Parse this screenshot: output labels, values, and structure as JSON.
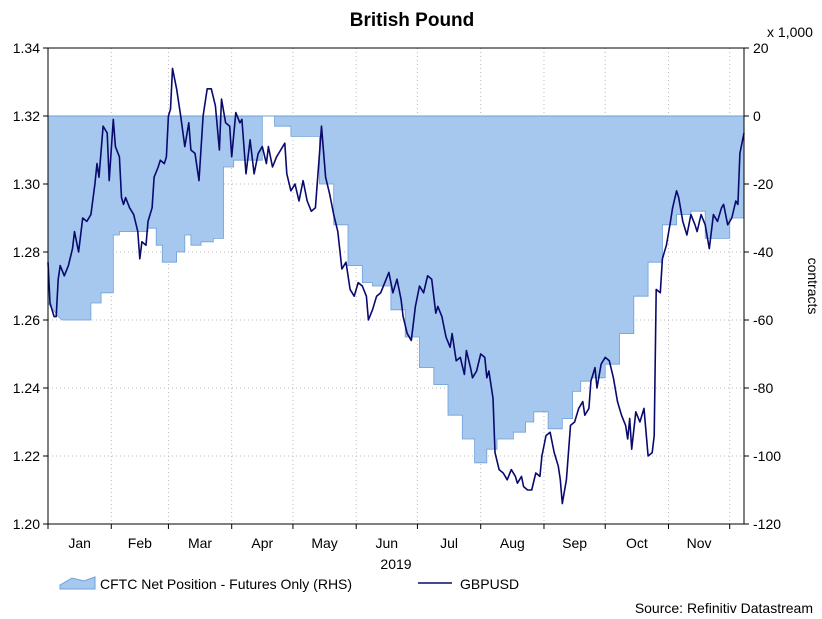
{
  "chart_data": {
    "type": "line",
    "title": "British Pound",
    "subtitle": "",
    "xlabel": "2019",
    "ylabel_left": "",
    "ylabel_right": "contracts",
    "right_multiplier": "x 1,000",
    "source": "Source: Refinitiv Datastream",
    "grid": true,
    "legend_position": "bottom-left",
    "months": [
      "Jan",
      "Feb",
      "Mar",
      "Apr",
      "May",
      "Jun",
      "Jul",
      "Aug",
      "Sep",
      "Oct",
      "Nov"
    ],
    "left_axis": {
      "min": 1.2,
      "max": 1.34,
      "ticks": [
        "1.20",
        "1.22",
        "1.24",
        "1.26",
        "1.28",
        "1.30",
        "1.32",
        "1.34"
      ]
    },
    "right_axis": {
      "min": -120,
      "max": 20,
      "ticks": [
        "-120",
        "-100",
        "-80",
        "-60",
        "-40",
        "-20",
        "0",
        "20"
      ]
    },
    "x_domain_days": [
      0,
      341
    ],
    "series": [
      {
        "name": "CFTC Net Position - Futures Only (RHS)",
        "kind": "area",
        "axis": "right",
        "color": "#a6c8ee",
        "stroke": "#6f9fd6",
        "points": [
          [
            0,
            -55
          ],
          [
            5,
            -59
          ],
          [
            7,
            -60
          ],
          [
            21,
            -60
          ],
          [
            21,
            -55
          ],
          [
            26,
            -55
          ],
          [
            26,
            -52
          ],
          [
            32,
            -52
          ],
          [
            32,
            -35
          ],
          [
            35,
            -35
          ],
          [
            35,
            -34
          ],
          [
            49,
            -34
          ],
          [
            49,
            -33
          ],
          [
            53,
            -33
          ],
          [
            53,
            -38
          ],
          [
            56,
            -38
          ],
          [
            56,
            -43
          ],
          [
            63,
            -43
          ],
          [
            63,
            -40
          ],
          [
            67,
            -40
          ],
          [
            67,
            -35
          ],
          [
            70,
            -35
          ],
          [
            70,
            -38
          ],
          [
            75,
            -38
          ],
          [
            75,
            -37
          ],
          [
            81,
            -37
          ],
          [
            81,
            -36
          ],
          [
            86,
            -36
          ],
          [
            86,
            -15
          ],
          [
            91,
            -15
          ],
          [
            91,
            -13
          ],
          [
            105,
            -13
          ],
          [
            105,
            0
          ],
          [
            111,
            0
          ],
          [
            111,
            -3
          ],
          [
            119,
            -3
          ],
          [
            119,
            -6
          ],
          [
            133,
            -6
          ],
          [
            133,
            -20
          ],
          [
            140,
            -20
          ],
          [
            140,
            -32
          ],
          [
            147,
            -32
          ],
          [
            147,
            -44
          ],
          [
            154,
            -44
          ],
          [
            154,
            -49
          ],
          [
            159,
            -49
          ],
          [
            159,
            -50
          ],
          [
            168,
            -50
          ],
          [
            168,
            -57
          ],
          [
            175,
            -57
          ],
          [
            175,
            -65
          ],
          [
            182,
            -65
          ],
          [
            182,
            -74
          ],
          [
            189,
            -74
          ],
          [
            189,
            -79
          ],
          [
            196,
            -79
          ],
          [
            196,
            -88
          ],
          [
            203,
            -88
          ],
          [
            203,
            -95
          ],
          [
            209,
            -95
          ],
          [
            209,
            -102
          ],
          [
            215,
            -102
          ],
          [
            215,
            -98
          ],
          [
            220,
            -98
          ],
          [
            220,
            -95
          ],
          [
            228,
            -95
          ],
          [
            228,
            -93
          ],
          [
            234,
            -93
          ],
          [
            234,
            -90
          ],
          [
            238,
            -90
          ],
          [
            238,
            -87
          ],
          [
            245,
            -87
          ],
          [
            245,
            -92
          ],
          [
            252,
            -92
          ],
          [
            252,
            -89
          ],
          [
            257,
            -89
          ],
          [
            257,
            -81
          ],
          [
            261,
            -81
          ],
          [
            261,
            -78
          ],
          [
            266,
            -78
          ],
          [
            266,
            -77
          ],
          [
            273,
            -77
          ],
          [
            273,
            -73
          ],
          [
            280,
            -73
          ],
          [
            280,
            -64
          ],
          [
            287,
            -64
          ],
          [
            287,
            -53
          ],
          [
            294,
            -53
          ],
          [
            294,
            -43
          ],
          [
            301,
            -43
          ],
          [
            301,
            -32
          ],
          [
            308,
            -32
          ],
          [
            308,
            -29
          ],
          [
            315,
            -29
          ],
          [
            315,
            -28
          ],
          [
            322,
            -28
          ],
          [
            322,
            -36
          ],
          [
            329,
            -36
          ],
          [
            329,
            -36
          ],
          [
            334,
            -36
          ],
          [
            334,
            -30
          ],
          [
            341,
            -30
          ]
        ]
      },
      {
        "name": "GBPUSD",
        "kind": "line",
        "axis": "left",
        "color": "#0a0a6e",
        "points": [
          [
            0,
            1.277
          ],
          [
            1,
            1.265
          ],
          [
            3,
            1.261
          ],
          [
            4,
            1.261
          ],
          [
            5,
            1.272
          ],
          [
            6,
            1.276
          ],
          [
            8,
            1.273
          ],
          [
            10,
            1.276
          ],
          [
            12,
            1.281
          ],
          [
            13,
            1.286
          ],
          [
            15,
            1.28
          ],
          [
            17,
            1.29
          ],
          [
            19,
            1.289
          ],
          [
            21,
            1.291
          ],
          [
            23,
            1.3
          ],
          [
            24,
            1.306
          ],
          [
            25,
            1.302
          ],
          [
            27,
            1.317
          ],
          [
            29,
            1.315
          ],
          [
            30,
            1.301
          ],
          [
            32,
            1.319
          ],
          [
            33,
            1.311
          ],
          [
            35,
            1.308
          ],
          [
            36,
            1.296
          ],
          [
            37,
            1.294
          ],
          [
            38,
            1.296
          ],
          [
            40,
            1.293
          ],
          [
            42,
            1.291
          ],
          [
            44,
            1.286
          ],
          [
            45,
            1.278
          ],
          [
            46,
            1.283
          ],
          [
            48,
            1.282
          ],
          [
            49,
            1.289
          ],
          [
            51,
            1.293
          ],
          [
            52,
            1.302
          ],
          [
            54,
            1.305
          ],
          [
            55,
            1.307
          ],
          [
            57,
            1.306
          ],
          [
            58,
            1.308
          ],
          [
            59,
            1.32
          ],
          [
            60,
            1.322
          ],
          [
            61,
            1.334
          ],
          [
            63,
            1.328
          ],
          [
            65,
            1.32
          ],
          [
            67,
            1.311
          ],
          [
            69,
            1.318
          ],
          [
            70,
            1.31
          ],
          [
            72,
            1.309
          ],
          [
            74,
            1.301
          ],
          [
            76,
            1.32
          ],
          [
            78,
            1.328
          ],
          [
            80,
            1.328
          ],
          [
            82,
            1.323
          ],
          [
            84,
            1.31
          ],
          [
            85,
            1.325
          ],
          [
            87,
            1.318
          ],
          [
            89,
            1.317
          ],
          [
            90,
            1.308
          ],
          [
            92,
            1.321
          ],
          [
            94,
            1.318
          ],
          [
            95,
            1.319
          ],
          [
            97,
            1.303
          ],
          [
            99,
            1.313
          ],
          [
            101,
            1.303
          ],
          [
            103,
            1.309
          ],
          [
            105,
            1.311
          ],
          [
            107,
            1.306
          ],
          [
            108,
            1.311
          ],
          [
            110,
            1.305
          ],
          [
            112,
            1.308
          ],
          [
            114,
            1.31
          ],
          [
            116,
            1.312
          ],
          [
            117,
            1.303
          ],
          [
            119,
            1.298
          ],
          [
            121,
            1.3
          ],
          [
            123,
            1.295
          ],
          [
            125,
            1.301
          ],
          [
            127,
            1.295
          ],
          [
            129,
            1.292
          ],
          [
            131,
            1.293
          ],
          [
            133,
            1.309
          ],
          [
            134,
            1.317
          ],
          [
            136,
            1.302
          ],
          [
            138,
            1.297
          ],
          [
            140,
            1.291
          ],
          [
            142,
            1.286
          ],
          [
            144,
            1.275
          ],
          [
            146,
            1.277
          ],
          [
            148,
            1.269
          ],
          [
            150,
            1.267
          ],
          [
            152,
            1.271
          ],
          [
            154,
            1.27
          ],
          [
            156,
            1.267
          ],
          [
            157,
            1.26
          ],
          [
            159,
            1.263
          ],
          [
            161,
            1.267
          ],
          [
            163,
            1.268
          ],
          [
            165,
            1.271
          ],
          [
            167,
            1.274
          ],
          [
            169,
            1.268
          ],
          [
            171,
            1.272
          ],
          [
            173,
            1.266
          ],
          [
            174,
            1.261
          ],
          [
            176,
            1.256
          ],
          [
            178,
            1.254
          ],
          [
            180,
            1.264
          ],
          [
            182,
            1.27
          ],
          [
            184,
            1.268
          ],
          [
            186,
            1.273
          ],
          [
            188,
            1.272
          ],
          [
            190,
            1.262
          ],
          [
            191,
            1.264
          ],
          [
            193,
            1.261
          ],
          [
            195,
            1.255
          ],
          [
            197,
            1.252
          ],
          [
            198,
            1.256
          ],
          [
            200,
            1.248
          ],
          [
            202,
            1.249
          ],
          [
            204,
            1.244
          ],
          [
            205,
            1.251
          ],
          [
            207,
            1.246
          ],
          [
            208,
            1.243
          ],
          [
            210,
            1.245
          ],
          [
            212,
            1.25
          ],
          [
            214,
            1.249
          ],
          [
            215,
            1.243
          ],
          [
            216,
            1.245
          ],
          [
            218,
            1.237
          ],
          [
            219,
            1.221
          ],
          [
            221,
            1.216
          ],
          [
            223,
            1.215
          ],
          [
            225,
            1.213
          ],
          [
            227,
            1.216
          ],
          [
            229,
            1.214
          ],
          [
            230,
            1.212
          ],
          [
            232,
            1.214
          ],
          [
            233,
            1.211
          ],
          [
            235,
            1.21
          ],
          [
            237,
            1.21
          ],
          [
            239,
            1.215
          ],
          [
            241,
            1.214
          ],
          [
            242,
            1.22
          ],
          [
            244,
            1.226
          ],
          [
            246,
            1.227
          ],
          [
            248,
            1.221
          ],
          [
            250,
            1.217
          ],
          [
            251,
            1.213
          ],
          [
            252,
            1.206
          ],
          [
            254,
            1.213
          ],
          [
            256,
            1.229
          ],
          [
            258,
            1.23
          ],
          [
            260,
            1.234
          ],
          [
            262,
            1.236
          ],
          [
            263,
            1.232
          ],
          [
            265,
            1.234
          ],
          [
            266,
            1.242
          ],
          [
            268,
            1.246
          ],
          [
            269,
            1.24
          ],
          [
            271,
            1.247
          ],
          [
            273,
            1.249
          ],
          [
            275,
            1.248
          ],
          [
            277,
            1.243
          ],
          [
            279,
            1.236
          ],
          [
            281,
            1.232
          ],
          [
            283,
            1.229
          ],
          [
            284,
            1.225
          ],
          [
            285,
            1.231
          ],
          [
            286,
            1.222
          ],
          [
            288,
            1.233
          ],
          [
            290,
            1.23
          ],
          [
            292,
            1.234
          ],
          [
            294,
            1.22
          ],
          [
            296,
            1.221
          ],
          [
            297,
            1.226
          ],
          [
            298,
            1.269
          ],
          [
            300,
            1.268
          ],
          [
            301,
            1.278
          ],
          [
            303,
            1.282
          ],
          [
            305,
            1.289
          ],
          [
            306,
            1.293
          ],
          [
            308,
            1.298
          ],
          [
            309,
            1.296
          ],
          [
            311,
            1.289
          ],
          [
            313,
            1.285
          ],
          [
            315,
            1.291
          ],
          [
            317,
            1.288
          ],
          [
            318,
            1.286
          ],
          [
            320,
            1.291
          ],
          [
            322,
            1.288
          ],
          [
            324,
            1.281
          ],
          [
            326,
            1.291
          ],
          [
            328,
            1.289
          ],
          [
            330,
            1.293
          ],
          [
            331,
            1.294
          ],
          [
            333,
            1.288
          ],
          [
            335,
            1.29
          ],
          [
            337,
            1.295
          ],
          [
            338,
            1.294
          ],
          [
            339,
            1.309
          ],
          [
            341,
            1.315
          ]
        ]
      }
    ]
  },
  "legend": {
    "area_label": "CFTC Net Position - Futures Only (RHS)",
    "line_label": "GBPUSD"
  },
  "colors": {
    "area_fill": "#a6c8ee",
    "area_stroke": "#6f9fd6",
    "line": "#0a0a6e",
    "grid": "#b9b9b9",
    "axis": "#000000"
  }
}
